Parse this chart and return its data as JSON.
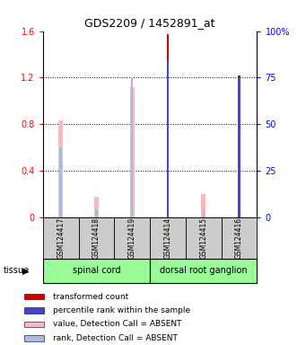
{
  "title": "GDS2209 / 1452891_at",
  "samples": [
    "GSM124417",
    "GSM124418",
    "GSM124419",
    "GSM124414",
    "GSM124415",
    "GSM124416"
  ],
  "transformed_count": [
    null,
    null,
    null,
    1.57,
    null,
    1.22
  ],
  "percentile_rank_val": [
    null,
    null,
    null,
    1.35,
    null,
    1.2
  ],
  "value_absent": [
    0.83,
    0.18,
    1.12,
    null,
    0.2,
    null
  ],
  "rank_absent_val": [
    0.6,
    0.065,
    1.2,
    null,
    0.065,
    null
  ],
  "ylim_left": [
    0,
    1.6
  ],
  "ylim_right": [
    0,
    100
  ],
  "yticks_left": [
    0,
    0.4,
    0.8,
    1.2,
    1.6
  ],
  "yticks_right": [
    0,
    25,
    50,
    75,
    100
  ],
  "ytick_labels_left": [
    "0",
    "0.4",
    "0.8",
    "1.2",
    "1.6"
  ],
  "ytick_labels_right": [
    "0",
    "25",
    "50",
    "75",
    "100%"
  ],
  "groups": [
    {
      "label": "spinal cord",
      "start": 0,
      "end": 2
    },
    {
      "label": "dorsal root ganglion",
      "start": 3,
      "end": 5
    }
  ],
  "group_color": "#98FB98",
  "tissue_label": "tissue",
  "color_transformed": "#cc0000",
  "color_percentile": "#4444cc",
  "color_value_absent": "#ffb6c1",
  "color_rank_absent": "#aabbdd",
  "legend_items": [
    {
      "color": "#cc0000",
      "label": "transformed count"
    },
    {
      "color": "#4444cc",
      "label": "percentile rank within the sample"
    },
    {
      "color": "#ffb6c1",
      "label": "value, Detection Call = ABSENT"
    },
    {
      "color": "#aabbdd",
      "label": "rank, Detection Call = ABSENT"
    }
  ],
  "bg_color": "#ffffff",
  "sample_box_color": "#cccccc"
}
